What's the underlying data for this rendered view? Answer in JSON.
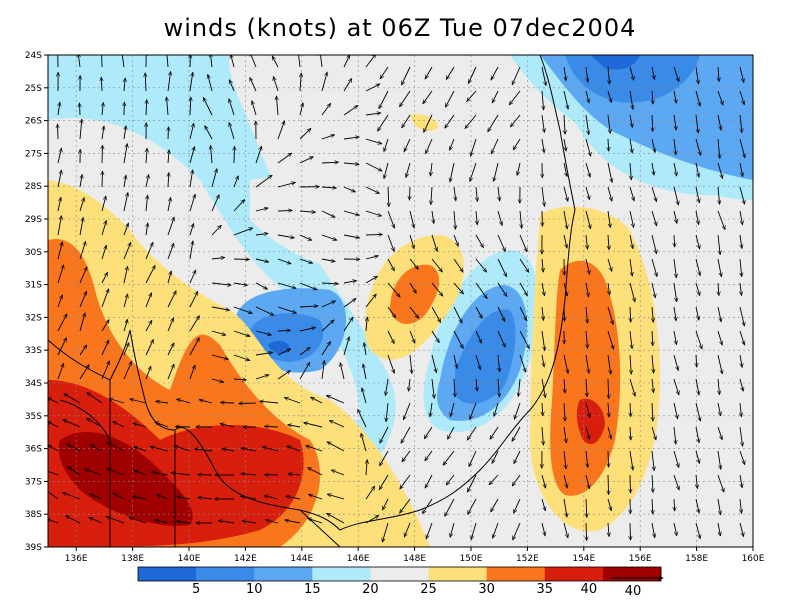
{
  "title": "winds (knots) at 06Z Tue 07dec2004",
  "y_ticks": [
    "24S",
    "25S",
    "26S",
    "27S",
    "28S",
    "29S",
    "30S",
    "31S",
    "32S",
    "33S",
    "34S",
    "35S",
    "36S",
    "37S",
    "38S",
    "39S"
  ],
  "x_ticks": [
    "136E",
    "138E",
    "140E",
    "142E",
    "144E",
    "146E",
    "148E",
    "150E",
    "152E",
    "154E",
    "156E",
    "158E",
    "160E"
  ],
  "colorbar": {
    "levels": [
      "5",
      "10",
      "15",
      "20",
      "25",
      "30",
      "35",
      "40"
    ],
    "colors": [
      "#1e68d8",
      "#3a8ae8",
      "#5da8f2",
      "#aeeafa",
      "#ececec",
      "#fde07a",
      "#f9761c",
      "#d81e0c",
      "#a00000"
    ],
    "arrow_label": "40"
  },
  "palette": {
    "c15": "#5da8f2",
    "c20": "#aeeafa",
    "c25": "#ececec",
    "c30": "#fde07a",
    "c35": "#f9761c",
    "c40": "#d81e0c",
    "c45": "#a00000",
    "c10": "#3a8ae8",
    "c5": "#1e68d8"
  }
}
